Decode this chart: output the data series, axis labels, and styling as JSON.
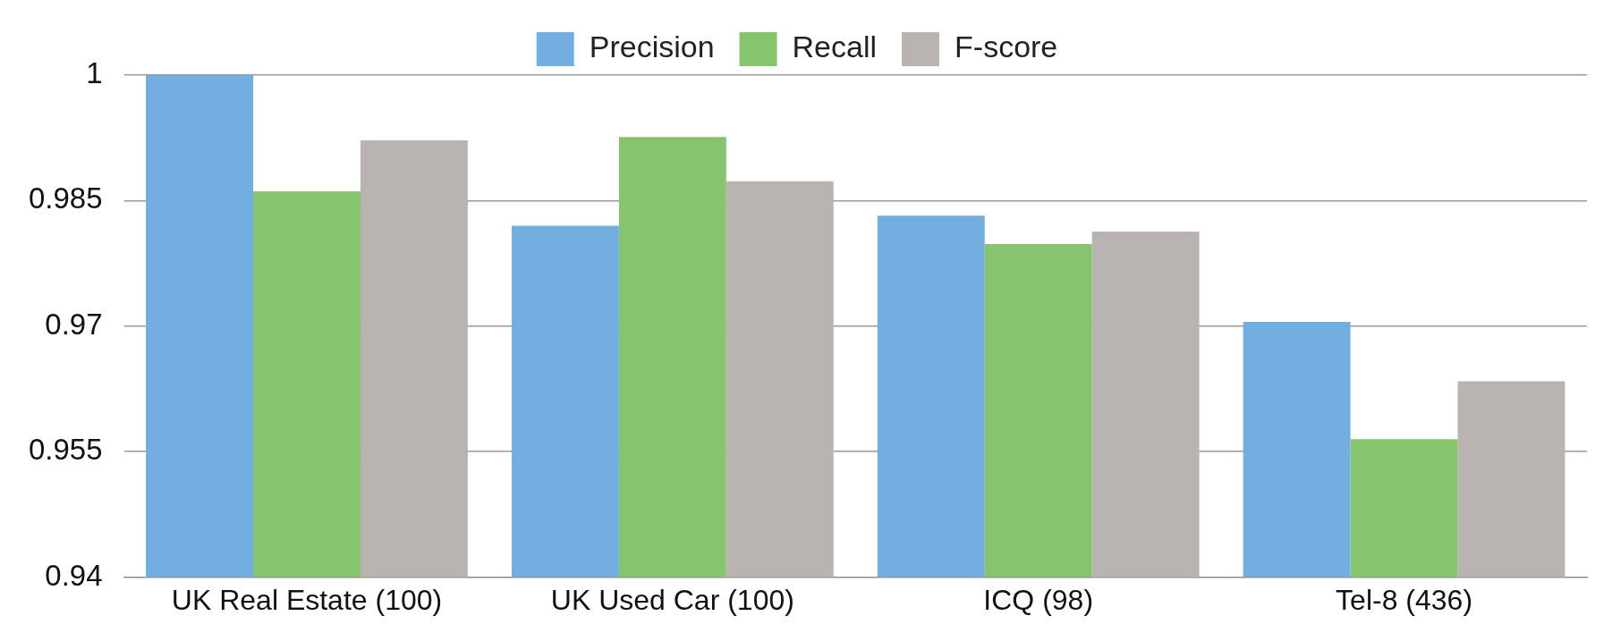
{
  "chart_data": {
    "type": "bar",
    "categories": [
      "UK Real Estate (100)",
      "UK Used Car (100)",
      "ICQ (98)",
      "Tel-8 (436)"
    ],
    "series": [
      {
        "name": "Precision",
        "color": "#72aee0",
        "values": [
          1.0,
          0.982,
          0.9832,
          0.9705
        ]
      },
      {
        "name": "Recall",
        "color": "#86c46e",
        "values": [
          0.9861,
          0.9926,
          0.9798,
          0.9565
        ]
      },
      {
        "name": "F-score",
        "color": "#b9b4b2",
        "values": [
          0.9922,
          0.9873,
          0.9813,
          0.9634
        ]
      }
    ],
    "ylim": [
      0.94,
      1
    ],
    "yticks": [
      0.94,
      0.955,
      0.97,
      0.985,
      1
    ],
    "grid": "y",
    "legend": "top"
  }
}
